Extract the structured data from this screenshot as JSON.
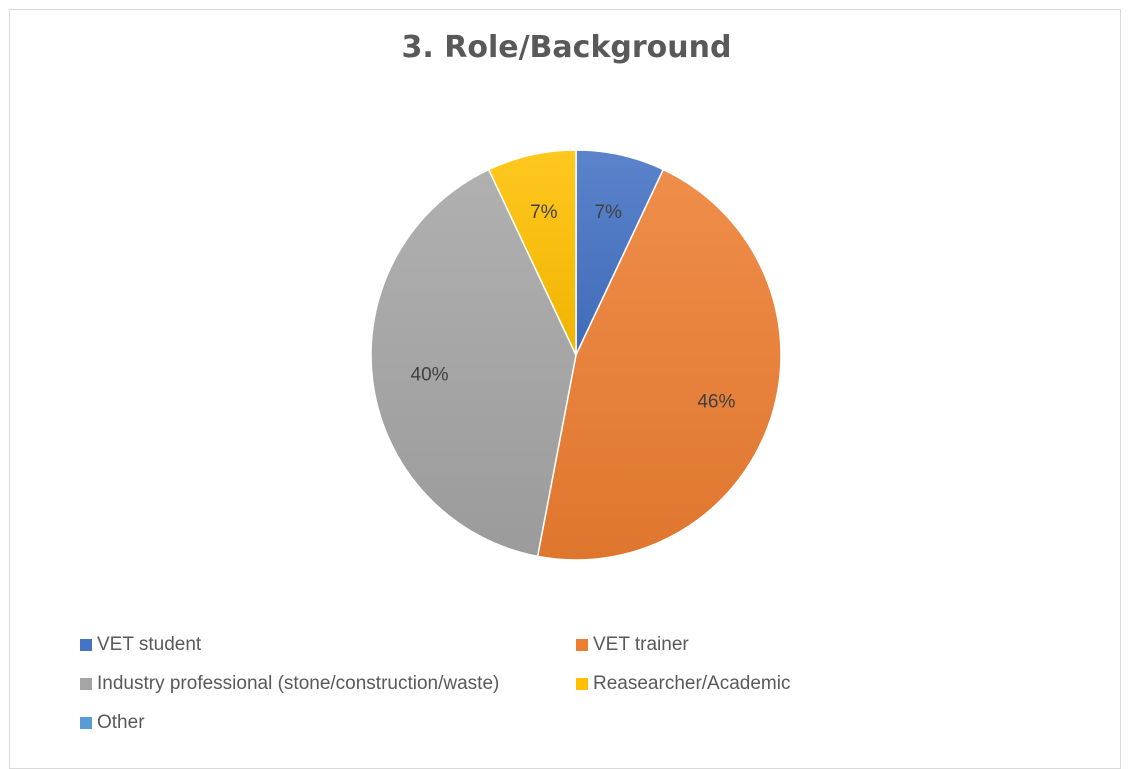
{
  "chart_data": {
    "type": "pie",
    "title": "3. Role/Background",
    "categories": [
      "VET student",
      "VET trainer",
      "Industry professional (stone/construction/waste)",
      "Reasearcher/Academic",
      "Other"
    ],
    "values": [
      7,
      46,
      40,
      7,
      0
    ],
    "labels": [
      "7%",
      "46%",
      "40%",
      "7%",
      ""
    ],
    "colors": [
      "#4472c4",
      "#ed7d31",
      "#a5a5a5",
      "#ffc000",
      "#5b9bd5"
    ],
    "legend_position": "bottom"
  }
}
